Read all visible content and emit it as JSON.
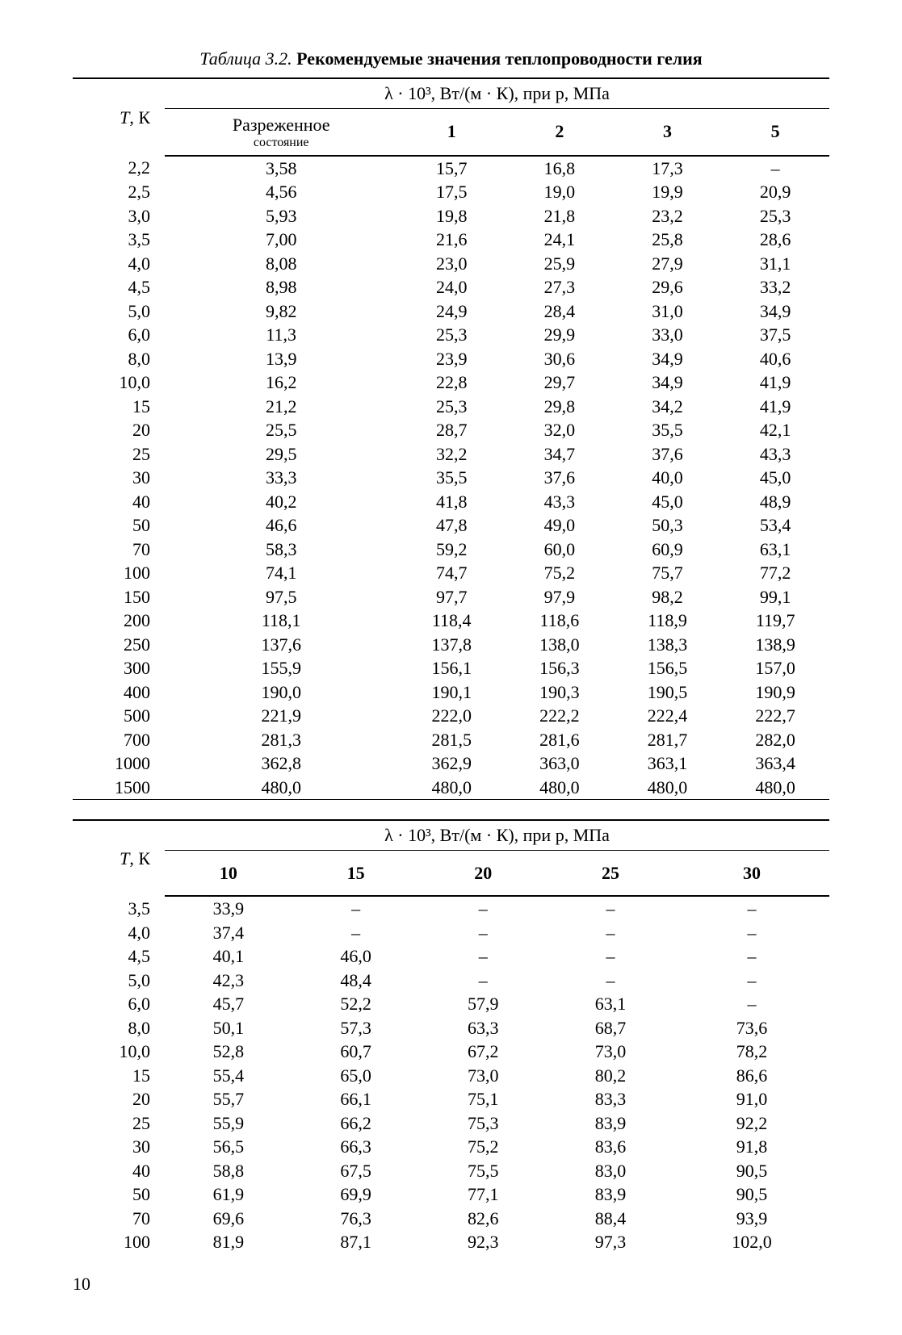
{
  "caption_label": "Таблица 3.2.",
  "caption_title": "Рекомендуемые значения теплопроводности гелия",
  "header_TK": "T, К",
  "header_TK_ital": "T",
  "header_K": ", К",
  "lambda_header": "λ · 10³, Вт/(м · К), при  p, МПа",
  "t1": {
    "col_dilute_1": "Разреженное",
    "col_dilute_2": "состояние",
    "cols": [
      "1",
      "2",
      "3",
      "5"
    ],
    "rows": [
      {
        "t": "2,2",
        "v": [
          "3,58",
          "15,7",
          "16,8",
          "17,3",
          "–"
        ]
      },
      {
        "t": "2,5",
        "v": [
          "4,56",
          "17,5",
          "19,0",
          "19,9",
          "20,9"
        ]
      },
      {
        "t": "3,0",
        "v": [
          "5,93",
          "19,8",
          "21,8",
          "23,2",
          "25,3"
        ]
      },
      {
        "t": "3,5",
        "v": [
          "7,00",
          "21,6",
          "24,1",
          "25,8",
          "28,6"
        ]
      },
      {
        "t": "4,0",
        "v": [
          "8,08",
          "23,0",
          "25,9",
          "27,9",
          "31,1"
        ]
      },
      {
        "t": "4,5",
        "v": [
          "8,98",
          "24,0",
          "27,3",
          "29,6",
          "33,2"
        ]
      },
      {
        "t": "5,0",
        "v": [
          "9,82",
          "24,9",
          "28,4",
          "31,0",
          "34,9"
        ]
      },
      {
        "t": "6,0",
        "v": [
          "11,3",
          "25,3",
          "29,9",
          "33,0",
          "37,5"
        ]
      },
      {
        "t": "8,0",
        "v": [
          "13,9",
          "23,9",
          "30,6",
          "34,9",
          "40,6"
        ]
      },
      {
        "t": "10,0",
        "v": [
          "16,2",
          "22,8",
          "29,7",
          "34,9",
          "41,9"
        ]
      },
      {
        "t": "15",
        "v": [
          "21,2",
          "25,3",
          "29,8",
          "34,2",
          "41,9"
        ]
      },
      {
        "t": "20",
        "v": [
          "25,5",
          "28,7",
          "32,0",
          "35,5",
          "42,1"
        ]
      },
      {
        "t": "25",
        "v": [
          "29,5",
          "32,2",
          "34,7",
          "37,6",
          "43,3"
        ]
      },
      {
        "t": "30",
        "v": [
          "33,3",
          "35,5",
          "37,6",
          "40,0",
          "45,0"
        ]
      },
      {
        "t": "40",
        "v": [
          "40,2",
          "41,8",
          "43,3",
          "45,0",
          "48,9"
        ]
      },
      {
        "t": "50",
        "v": [
          "46,6",
          "47,8",
          "49,0",
          "50,3",
          "53,4"
        ]
      },
      {
        "t": "70",
        "v": [
          "58,3",
          "59,2",
          "60,0",
          "60,9",
          "63,1"
        ]
      },
      {
        "t": "100",
        "v": [
          "74,1",
          "74,7",
          "75,2",
          "75,7",
          "77,2"
        ]
      },
      {
        "t": "150",
        "v": [
          "97,5",
          "97,7",
          "97,9",
          "98,2",
          "99,1"
        ]
      },
      {
        "t": "200",
        "v": [
          "118,1",
          "118,4",
          "118,6",
          "118,9",
          "119,7"
        ]
      },
      {
        "t": "250",
        "v": [
          "137,6",
          "137,8",
          "138,0",
          "138,3",
          "138,9"
        ]
      },
      {
        "t": "300",
        "v": [
          "155,9",
          "156,1",
          "156,3",
          "156,5",
          "157,0"
        ]
      },
      {
        "t": "400",
        "v": [
          "190,0",
          "190,1",
          "190,3",
          "190,5",
          "190,9"
        ]
      },
      {
        "t": "500",
        "v": [
          "221,9",
          "222,0",
          "222,2",
          "222,4",
          "222,7"
        ]
      },
      {
        "t": "700",
        "v": [
          "281,3",
          "281,5",
          "281,6",
          "281,7",
          "282,0"
        ]
      },
      {
        "t": "1000",
        "v": [
          "362,8",
          "362,9",
          "363,0",
          "363,1",
          "363,4"
        ]
      },
      {
        "t": "1500",
        "v": [
          "480,0",
          "480,0",
          "480,0",
          "480,0",
          "480,0"
        ]
      }
    ]
  },
  "t2": {
    "cols": [
      "10",
      "15",
      "20",
      "25",
      "30"
    ],
    "rows": [
      {
        "t": "3,5",
        "v": [
          "33,9",
          "–",
          "–",
          "–",
          "–"
        ]
      },
      {
        "t": "4,0",
        "v": [
          "37,4",
          "–",
          "–",
          "–",
          "–"
        ]
      },
      {
        "t": "4,5",
        "v": [
          "40,1",
          "46,0",
          "–",
          "–",
          "–"
        ]
      },
      {
        "t": "5,0",
        "v": [
          "42,3",
          "48,4",
          "–",
          "–",
          "–"
        ]
      },
      {
        "t": "6,0",
        "v": [
          "45,7",
          "52,2",
          "57,9",
          "63,1",
          "–"
        ]
      },
      {
        "t": "8,0",
        "v": [
          "50,1",
          "57,3",
          "63,3",
          "68,7",
          "73,6"
        ]
      },
      {
        "t": "10,0",
        "v": [
          "52,8",
          "60,7",
          "67,2",
          "73,0",
          "78,2"
        ]
      },
      {
        "t": "15",
        "v": [
          "55,4",
          "65,0",
          "73,0",
          "80,2",
          "86,6"
        ]
      },
      {
        "t": "20",
        "v": [
          "55,7",
          "66,1",
          "75,1",
          "83,3",
          "91,0"
        ]
      },
      {
        "t": "25",
        "v": [
          "55,9",
          "66,2",
          "75,3",
          "83,9",
          "92,2"
        ]
      },
      {
        "t": "30",
        "v": [
          "56,5",
          "66,3",
          "75,2",
          "83,6",
          "91,8"
        ]
      },
      {
        "t": "40",
        "v": [
          "58,8",
          "67,5",
          "75,5",
          "83,0",
          "90,5"
        ]
      },
      {
        "t": "50",
        "v": [
          "61,9",
          "69,9",
          "77,1",
          "83,9",
          "90,5"
        ]
      },
      {
        "t": "70",
        "v": [
          "69,6",
          "76,3",
          "82,6",
          "88,4",
          "93,9"
        ]
      },
      {
        "t": "100",
        "v": [
          "81,9",
          "87,1",
          "92,3",
          "97,3",
          "102,0"
        ]
      }
    ]
  },
  "page_number": "10"
}
